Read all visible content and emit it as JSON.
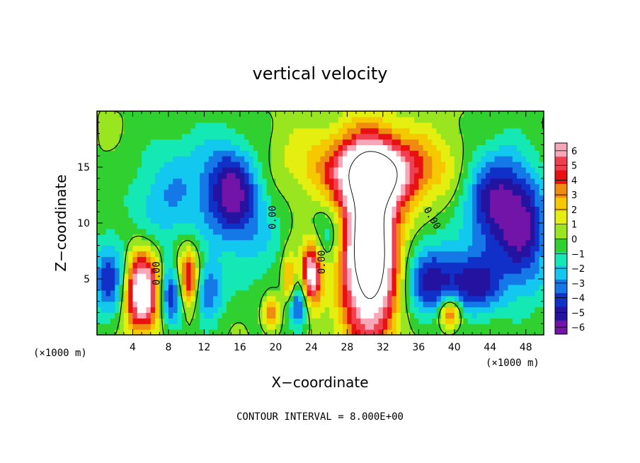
{
  "chart_data": {
    "type": "heatmap",
    "title": "vertical velocity",
    "xlabel": "X−coordinate",
    "ylabel": "Z−coordinate",
    "x_units": "(×1000 m)",
    "y_units": "(×1000 m)",
    "xlim": [
      0,
      50
    ],
    "ylim": [
      0,
      20
    ],
    "x_ticks": [
      "4",
      "8",
      "12",
      "16",
      "20",
      "24",
      "28",
      "32",
      "36",
      "40",
      "44",
      "48"
    ],
    "y_ticks": [
      "5",
      "10",
      "15"
    ],
    "colorbar": {
      "range": [
        -6,
        6
      ],
      "ticks": [
        "6",
        "5",
        "4",
        "3",
        "2",
        "1",
        "0",
        "−1",
        "−2",
        "−3",
        "−4",
        "−5",
        "−6"
      ],
      "colors": [
        "#f7a8b8",
        "#f04050",
        "#e81010",
        "#f08a10",
        "#f5c800",
        "#e4ef10",
        "#99e620",
        "#2fd030",
        "#14e8b4",
        "#12c8ef",
        "#1478e6",
        "#1030c8",
        "#2412a0",
        "#7214a8"
      ]
    },
    "contour_labels": [
      "0.00",
      "0.00",
      "0.00",
      "0.00"
    ],
    "footer": "CONTOUR INTERVAL = 8.000E+00",
    "features": [
      {
        "x": 5.0,
        "z": 4.0,
        "w": 8.0,
        "sx": 1.4,
        "sz": 2.6
      },
      {
        "x": 10.2,
        "z": 4.8,
        "w": 7.0,
        "sx": 1.0,
        "sz": 2.0
      },
      {
        "x": 24.0,
        "z": 5.5,
        "w": 7.0,
        "sx": 0.8,
        "sz": 2.0
      },
      {
        "x": 30.5,
        "z": 7.5,
        "w": 11.0,
        "sx": 2.2,
        "sz": 5.5
      },
      {
        "x": 31.5,
        "z": 14.5,
        "w": 5.0,
        "sx": 3.8,
        "sz": 2.0
      },
      {
        "x": 30.5,
        "z": 15.5,
        "w": 2.0,
        "sx": 8.0,
        "sz": 2.5
      },
      {
        "x": 39.5,
        "z": 2.0,
        "w": 5.0,
        "sx": 0.9,
        "sz": 1.0
      },
      {
        "x": 19.5,
        "z": 2.0,
        "w": 4.0,
        "sx": 0.6,
        "sz": 1.0
      },
      {
        "x": 21.5,
        "z": 5.0,
        "w": 3.5,
        "sx": 0.5,
        "sz": 1.6
      },
      {
        "x": 15.0,
        "z": 12.5,
        "w": -5.0,
        "sx": 2.0,
        "sz": 3.0
      },
      {
        "x": 44.5,
        "z": 12.0,
        "w": -5.0,
        "sx": 2.5,
        "sz": 3.5
      },
      {
        "x": 48.0,
        "z": 9.0,
        "w": -4.0,
        "sx": 2.0,
        "sz": 4.0
      },
      {
        "x": 1.5,
        "z": 5.0,
        "w": -4.0,
        "sx": 1.5,
        "sz": 2.5
      },
      {
        "x": 8.5,
        "z": 3.5,
        "w": -5.0,
        "sx": 1.0,
        "sz": 2.0
      },
      {
        "x": 12.0,
        "z": 4.0,
        "w": -4.0,
        "sx": 1.5,
        "sz": 2.0
      },
      {
        "x": 22.5,
        "z": 2.5,
        "w": -4.0,
        "sx": 0.8,
        "sz": 1.5
      },
      {
        "x": 37.0,
        "z": 5.0,
        "w": -4.0,
        "sx": 2.0,
        "sz": 2.5
      },
      {
        "x": 42.0,
        "z": 4.5,
        "w": -4.5,
        "sx": 2.5,
        "sz": 2.0
      },
      {
        "x": 7.5,
        "z": 11.0,
        "w": -2.0,
        "sx": 3.0,
        "sz": 3.0
      },
      {
        "x": 26.0,
        "z": 9.0,
        "w": -2.0,
        "sx": 1.5,
        "sz": 2.0
      },
      {
        "x": 11.0,
        "z": 15.0,
        "w": -1.5,
        "sx": 4.0,
        "sz": 3.0
      },
      {
        "x": 18.0,
        "z": 9.0,
        "w": -1.5,
        "sx": 2.0,
        "sz": 4.0
      }
    ]
  }
}
